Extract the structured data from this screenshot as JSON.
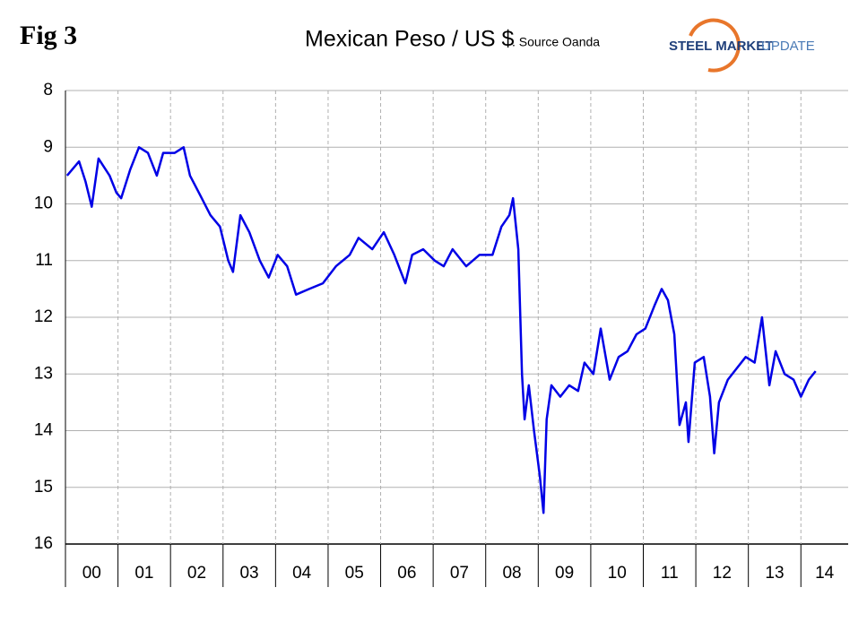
{
  "header": {
    "figure": "Fig 3",
    "logo_bold": "STEEL MARKET",
    "logo_light": "UPDATE"
  },
  "chart_data": {
    "type": "line",
    "title": "Mexican Peso / US $",
    "subtitle": ". Source Oanda",
    "color": "#0000e6",
    "y_inverted": true,
    "grid": true,
    "ylim": [
      8,
      16
    ],
    "yticks": [
      8,
      9,
      10,
      11,
      12,
      13,
      14,
      15,
      16
    ],
    "xlim": [
      0,
      14.9
    ],
    "xticks": [
      {
        "value": 0,
        "label": "00"
      },
      {
        "value": 1,
        "label": "01"
      },
      {
        "value": 2,
        "label": "02"
      },
      {
        "value": 3,
        "label": "03"
      },
      {
        "value": 4,
        "label": "04"
      },
      {
        "value": 5,
        "label": "05"
      },
      {
        "value": 6,
        "label": "06"
      },
      {
        "value": 7,
        "label": "07"
      },
      {
        "value": 8,
        "label": "08"
      },
      {
        "value": 9,
        "label": "09"
      },
      {
        "value": 10,
        "label": "10"
      },
      {
        "value": 11,
        "label": "11"
      },
      {
        "value": 12,
        "label": "12"
      },
      {
        "value": 13,
        "label": "13"
      },
      {
        "value": 14,
        "label": "14"
      }
    ],
    "x": [
      0.03,
      0.26,
      0.38,
      0.5,
      0.63,
      0.84,
      0.97,
      1.06,
      1.23,
      1.4,
      1.57,
      1.74,
      1.86,
      2.08,
      2.25,
      2.37,
      2.54,
      2.76,
      2.94,
      3.1,
      3.19,
      3.33,
      3.5,
      3.7,
      3.87,
      4.04,
      4.22,
      4.39,
      4.64,
      4.9,
      5.15,
      5.41,
      5.58,
      5.84,
      6.06,
      6.26,
      6.47,
      6.6,
      6.81,
      7.03,
      7.2,
      7.37,
      7.63,
      7.88,
      8.13,
      8.3,
      8.45,
      8.52,
      8.62,
      8.69,
      8.74,
      8.82,
      8.92,
      9.03,
      9.1,
      9.16,
      9.25,
      9.42,
      9.59,
      9.76,
      9.88,
      10.05,
      10.19,
      10.36,
      10.53,
      10.7,
      10.87,
      11.04,
      11.21,
      11.35,
      11.47,
      11.59,
      11.69,
      11.81,
      11.86,
      11.98,
      12.15,
      12.27,
      12.35,
      12.44,
      12.61,
      12.78,
      12.95,
      13.12,
      13.26,
      13.4,
      13.52,
      13.69,
      13.86,
      14.0,
      14.15,
      14.28
    ],
    "values": [
      9.5,
      9.25,
      9.6,
      10.05,
      9.2,
      9.5,
      9.8,
      9.9,
      9.4,
      9.0,
      9.1,
      9.5,
      9.1,
      9.1,
      9.0,
      9.5,
      9.8,
      10.2,
      10.4,
      11.0,
      11.2,
      10.2,
      10.5,
      11.0,
      11.3,
      10.9,
      11.1,
      11.6,
      11.5,
      11.4,
      11.1,
      10.9,
      10.6,
      10.8,
      10.5,
      10.9,
      11.4,
      10.9,
      10.8,
      11.0,
      11.1,
      10.8,
      11.1,
      10.9,
      10.9,
      10.4,
      10.2,
      9.9,
      10.8,
      13.0,
      13.8,
      13.2,
      14.0,
      14.8,
      15.45,
      13.8,
      13.2,
      13.4,
      13.2,
      13.3,
      12.8,
      13.0,
      12.2,
      13.1,
      12.7,
      12.6,
      12.3,
      12.2,
      11.8,
      11.5,
      11.7,
      12.3,
      13.9,
      13.5,
      14.2,
      12.8,
      12.7,
      13.4,
      14.4,
      13.5,
      13.1,
      12.9,
      12.7,
      12.8,
      12.0,
      13.2,
      12.6,
      13.0,
      13.1,
      13.4,
      13.1,
      12.95
    ]
  }
}
